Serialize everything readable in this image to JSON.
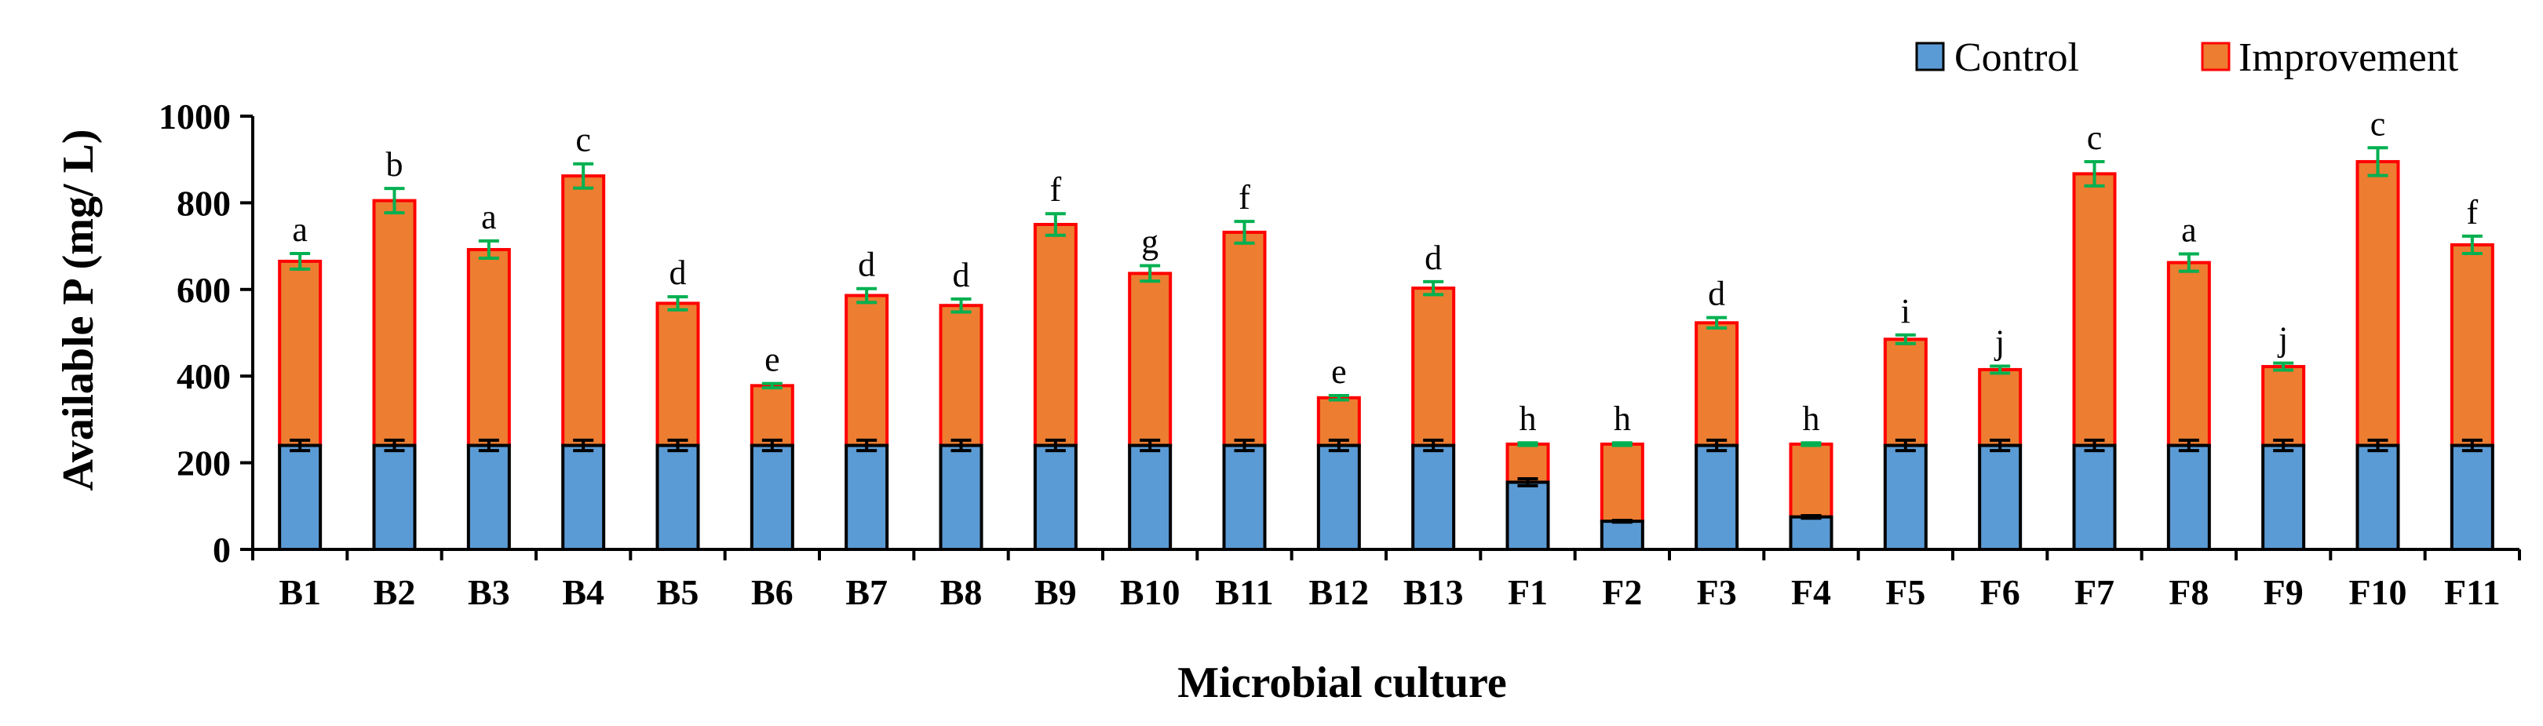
{
  "chart_data": {
    "type": "bar",
    "stacked": true,
    "title": "",
    "xlabel": "Microbial culture",
    "ylabel": "Available P (mg/ L)",
    "ylim": [
      0,
      1000
    ],
    "yticks": [
      0,
      200,
      400,
      600,
      800,
      1000
    ],
    "categories": [
      "B1",
      "B2",
      "B3",
      "B4",
      "B5",
      "B6",
      "B7",
      "B8",
      "B9",
      "B10",
      "B11",
      "B12",
      "B13",
      "F1",
      "F2",
      "F3",
      "F4",
      "F5",
      "F6",
      "F7",
      "F8",
      "F9",
      "F10",
      "F11"
    ],
    "series": [
      {
        "name": "Control",
        "color": "#5b9bd5",
        "edge": "#000000",
        "values": [
          240,
          240,
          240,
          240,
          240,
          240,
          240,
          240,
          240,
          240,
          240,
          240,
          240,
          155,
          65,
          240,
          75,
          240,
          240,
          240,
          240,
          240,
          240,
          240
        ],
        "errors": [
          12,
          12,
          12,
          12,
          12,
          12,
          12,
          12,
          12,
          12,
          12,
          12,
          12,
          8,
          2,
          12,
          3,
          12,
          12,
          12,
          12,
          12,
          12,
          12
        ]
      },
      {
        "name": "Improvement",
        "color": "#ed7d31",
        "edge": "#ff0000",
        "totals": [
          665,
          805,
          692,
          862,
          568,
          378,
          586,
          563,
          750,
          637,
          732,
          350,
          603,
          243,
          243,
          523,
          243,
          485,
          415,
          867,
          662,
          422,
          895,
          703
        ],
        "errors": [
          18,
          28,
          20,
          28,
          15,
          5,
          16,
          15,
          25,
          18,
          25,
          5,
          15,
          3,
          3,
          12,
          3,
          10,
          8,
          28,
          20,
          8,
          32,
          20
        ]
      }
    ],
    "significance_letters": [
      "a",
      "b",
      "a",
      "c",
      "d",
      "e",
      "d",
      "d",
      "f",
      "g",
      "f",
      "e",
      "d",
      "h",
      "h",
      "d",
      "h",
      "i",
      "j",
      "c",
      "a",
      "j",
      "c",
      "f"
    ],
    "legend": {
      "position": "top-right",
      "entries": [
        "Control",
        "Improvement"
      ]
    },
    "error_bar_color": "#00b050",
    "grid": false
  }
}
